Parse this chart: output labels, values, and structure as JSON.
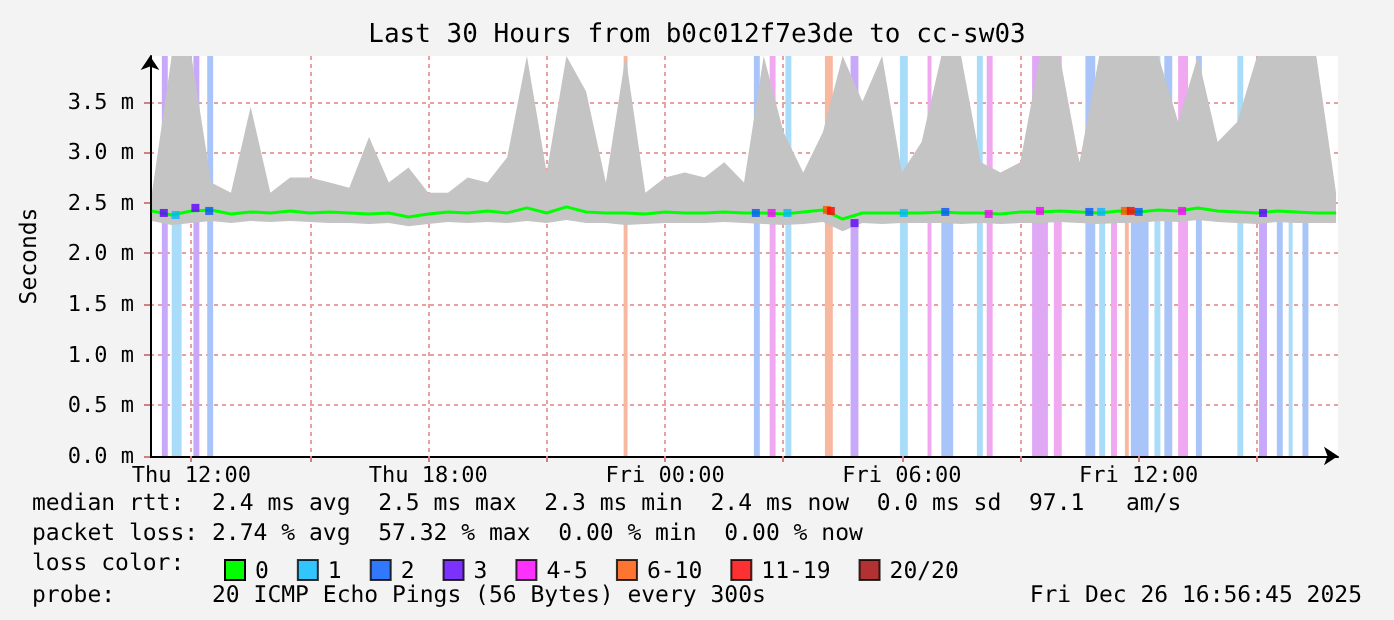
{
  "chart_data": {
    "type": "line",
    "title": "Last 30 Hours from b0c012f7e3de to cc-sw03",
    "ylabel": "Seconds",
    "legend_title": "loss color:",
    "annotations": [
      "median rtt:  2.4 ms avg  2.5 ms max  2.3 ms min  2.4 ms now  0.0 ms sd  97.1   am/s",
      "packet loss: 2.74 % avg  57.32 % max  0.00 % min  0.00 % now",
      "probe:       20 ICMP Echo Pings (56 Bytes) every 300s",
      "Fri Dec 26 16:56:45 2025"
    ],
    "xlim": [
      "2025-12-25T10:57",
      "2025-12-26T17:03"
    ],
    "xticks": [
      {
        "value": "2025-12-25T12:00",
        "label": "Thu 12:00"
      },
      {
        "value": "2025-12-25T15:00",
        "label": null
      },
      {
        "value": "2025-12-25T18:00",
        "label": "Thu 18:00"
      },
      {
        "value": "2025-12-25T21:00",
        "label": null
      },
      {
        "value": "2025-12-26T00:00",
        "label": "Fri 00:00"
      },
      {
        "value": "2025-12-26T03:00",
        "label": null
      },
      {
        "value": "2025-12-26T06:00",
        "label": "Fri 06:00"
      },
      {
        "value": "2025-12-26T09:00",
        "label": null
      },
      {
        "value": "2025-12-26T12:00",
        "label": "Fri 12:00"
      },
      {
        "value": "2025-12-26T15:00",
        "label": null
      }
    ],
    "ylim": [
      0,
      3.95
    ],
    "yticks": [
      {
        "value": 0,
        "label": "0.0 m"
      },
      {
        "value": 0.5,
        "label": "0.5 m"
      },
      {
        "value": 1,
        "label": "1.0 m"
      },
      {
        "value": 1.5,
        "label": "1.5 m"
      },
      {
        "value": 2,
        "label": "2.0 m"
      },
      {
        "value": 2.5,
        "label": "2.5 m"
      },
      {
        "value": 3,
        "label": "3.0 m"
      },
      {
        "value": 3.5,
        "label": "3.5 m"
      }
    ],
    "grid": true,
    "legend": "bottom left",
    "line_style": "solid",
    "series": [
      {
        "name": "0",
        "color": "#00ff00",
        "marker": "none",
        "x": [
          "2025-12-25T11:00",
          "2025-12-25T11:30",
          "2025-12-25T12:00",
          "2025-12-25T12:30",
          "2025-12-25T13:00",
          "2025-12-25T13:30",
          "2025-12-25T14:00",
          "2025-12-25T14:30",
          "2025-12-25T15:00",
          "2025-12-25T15:30",
          "2025-12-25T16:00",
          "2025-12-25T16:30",
          "2025-12-25T17:00",
          "2025-12-25T17:30",
          "2025-12-25T18:00",
          "2025-12-25T18:30",
          "2025-12-25T19:00",
          "2025-12-25T19:30",
          "2025-12-25T20:00",
          "2025-12-25T20:30",
          "2025-12-25T21:00",
          "2025-12-25T21:30",
          "2025-12-25T22:00",
          "2025-12-25T22:30",
          "2025-12-25T23:00",
          "2025-12-25T23:30",
          "2025-12-26T00:00",
          "2025-12-26T00:30",
          "2025-12-26T01:00",
          "2025-12-26T01:30",
          "2025-12-26T02:00",
          "2025-12-26T02:30",
          "2025-12-26T03:00",
          "2025-12-26T03:30",
          "2025-12-26T04:00",
          "2025-12-26T04:30",
          "2025-12-26T05:00",
          "2025-12-26T05:30",
          "2025-12-26T06:00",
          "2025-12-26T06:30",
          "2025-12-26T07:00",
          "2025-12-26T07:30",
          "2025-12-26T08:00",
          "2025-12-26T08:30",
          "2025-12-26T09:00",
          "2025-12-26T09:30",
          "2025-12-26T10:00",
          "2025-12-26T10:30",
          "2025-12-26T11:00",
          "2025-12-26T11:30",
          "2025-12-26T12:00",
          "2025-12-26T12:30",
          "2025-12-26T13:00",
          "2025-12-26T13:30",
          "2025-12-26T14:00",
          "2025-12-26T14:30",
          "2025-12-26T15:00",
          "2025-12-26T15:30",
          "2025-12-26T16:00",
          "2025-12-26T16:30",
          "2025-12-26T17:00"
        ],
        "values": [
          2.42,
          2.38,
          2.42,
          2.43,
          2.39,
          2.41,
          2.4,
          2.42,
          2.4,
          2.41,
          2.4,
          2.39,
          2.4,
          2.36,
          2.39,
          2.41,
          2.4,
          2.42,
          2.4,
          2.45,
          2.4,
          2.46,
          2.41,
          2.4,
          2.4,
          2.39,
          2.41,
          2.4,
          2.4,
          2.41,
          2.4,
          2.4,
          2.39,
          2.41,
          2.43,
          2.34,
          2.4,
          2.4,
          2.4,
          2.4,
          2.41,
          2.4,
          2.4,
          2.39,
          2.41,
          2.41,
          2.42,
          2.41,
          2.4,
          2.42,
          2.41,
          2.43,
          2.42,
          2.45,
          2.42,
          2.41,
          2.4,
          2.42,
          2.41,
          2.4,
          2.4
        ],
        "lower": [
          2.32,
          2.28,
          2.3,
          2.32,
          2.3,
          2.32,
          2.31,
          2.32,
          2.31,
          2.3,
          2.3,
          2.29,
          2.3,
          2.27,
          2.29,
          2.31,
          2.3,
          2.31,
          2.3,
          2.32,
          2.3,
          2.33,
          2.3,
          2.3,
          2.28,
          2.29,
          2.3,
          2.3,
          2.3,
          2.31,
          2.3,
          2.29,
          2.28,
          2.29,
          2.31,
          2.22,
          2.3,
          2.29,
          2.3,
          2.3,
          2.3,
          2.29,
          2.3,
          2.29,
          2.3,
          2.3,
          2.31,
          2.3,
          2.29,
          2.3,
          2.3,
          2.32,
          2.31,
          2.33,
          2.31,
          2.3,
          2.29,
          2.31,
          2.3,
          2.3,
          2.3
        ],
        "upper": [
          2.6,
          3.95,
          3.95,
          2.7,
          2.6,
          3.45,
          2.6,
          2.75,
          2.75,
          2.7,
          2.65,
          3.15,
          2.7,
          2.85,
          2.6,
          2.6,
          2.75,
          2.7,
          2.95,
          3.95,
          2.8,
          3.95,
          3.6,
          2.7,
          3.95,
          2.6,
          2.75,
          2.8,
          2.75,
          2.9,
          2.7,
          3.95,
          3.2,
          2.8,
          3.2,
          3.95,
          3.5,
          3.95,
          2.8,
          3.1,
          3.95,
          3.95,
          2.9,
          2.8,
          2.9,
          3.95,
          3.95,
          2.9,
          3.95,
          3.95,
          3.95,
          3.95,
          3.3,
          3.95,
          3.1,
          3.3,
          3.95,
          3.95,
          3.95,
          3.95,
          2.6
        ]
      },
      {
        "name": "1",
        "color": "#00b8ff",
        "type": "scatter",
        "marker": "square",
        "x": [
          "2025-12-25T11:36",
          "2025-12-26T03:06",
          "2025-12-26T06:03",
          "2025-12-26T11:03"
        ],
        "values": [
          2.38,
          2.4,
          2.4,
          2.41
        ]
      },
      {
        "name": "2",
        "color": "#0059ff",
        "type": "scatter",
        "marker": "square",
        "x": [
          "2025-12-25T12:27",
          "2025-12-26T02:18",
          "2025-12-26T07:06",
          "2025-12-26T10:45",
          "2025-12-26T12:00"
        ],
        "values": [
          2.42,
          2.4,
          2.41,
          2.41,
          2.41
        ]
      },
      {
        "name": "3",
        "color": "#5e00ff",
        "type": "scatter",
        "marker": "square",
        "x": [
          "2025-12-25T11:18",
          "2025-12-25T12:06",
          "2025-12-26T04:48",
          "2025-12-26T15:09"
        ],
        "values": [
          2.4,
          2.45,
          2.3,
          2.4
        ]
      },
      {
        "name": "4-5",
        "color": "#ff00ff",
        "type": "scatter",
        "marker": "square",
        "x": [
          "2025-12-26T02:42",
          "2025-12-26T08:12",
          "2025-12-26T09:30",
          "2025-12-26T13:06"
        ],
        "values": [
          2.4,
          2.39,
          2.42,
          2.42
        ]
      },
      {
        "name": "6-10",
        "color": "#ff5500",
        "type": "scatter",
        "marker": "square",
        "x": [
          "2025-12-26T04:06",
          "2025-12-26T11:39"
        ],
        "values": [
          2.43,
          2.42
        ]
      },
      {
        "name": "11-19",
        "color": "#ff0000",
        "type": "scatter",
        "marker": "square",
        "x": [
          "2025-12-26T04:12",
          "2025-12-26T11:48"
        ],
        "values": [
          2.42,
          2.42
        ]
      },
      {
        "name": "20/20",
        "color": "#a10000",
        "type": "scatter",
        "marker": "square"
      }
    ],
    "bands": [
      {
        "axis": "x",
        "from": "2025-12-25T11:15",
        "to": "2025-12-25T11:24",
        "color": "#c8a8f8"
      },
      {
        "axis": "x",
        "from": "2025-12-25T11:30",
        "to": "2025-12-25T11:45",
        "color": "#a8dcf8"
      },
      {
        "axis": "x",
        "from": "2025-12-25T12:03",
        "to": "2025-12-25T12:12",
        "color": "#c8a8f8"
      },
      {
        "axis": "x",
        "from": "2025-12-25T12:24",
        "to": "2025-12-25T12:33",
        "color": "#a8c4f8"
      },
      {
        "axis": "x",
        "from": "2025-12-25T22:57",
        "to": "2025-12-25T23:03",
        "color": "#f8b8a0"
      },
      {
        "axis": "x",
        "from": "2025-12-26T02:15",
        "to": "2025-12-26T02:24",
        "color": "#a8c4f8"
      },
      {
        "axis": "x",
        "from": "2025-12-26T02:39",
        "to": "2025-12-26T02:48",
        "color": "#f0a8f0"
      },
      {
        "axis": "x",
        "from": "2025-12-26T03:03",
        "to": "2025-12-26T03:12",
        "color": "#a8dcf8"
      },
      {
        "axis": "x",
        "from": "2025-12-26T04:03",
        "to": "2025-12-26T04:15",
        "color": "#f8b8a0"
      },
      {
        "axis": "x",
        "from": "2025-12-26T04:42",
        "to": "2025-12-26T04:54",
        "color": "#c8a8f8"
      },
      {
        "axis": "x",
        "from": "2025-12-26T05:57",
        "to": "2025-12-26T06:09",
        "color": "#a8dcf8"
      },
      {
        "axis": "x",
        "from": "2025-12-26T06:39",
        "to": "2025-12-26T06:45",
        "color": "#f0a8f0"
      },
      {
        "axis": "x",
        "from": "2025-12-26T07:00",
        "to": "2025-12-26T07:18",
        "color": "#a8c4f8"
      },
      {
        "axis": "x",
        "from": "2025-12-26T07:54",
        "to": "2025-12-26T08:03",
        "color": "#a8dcf8"
      },
      {
        "axis": "x",
        "from": "2025-12-26T08:09",
        "to": "2025-12-26T08:18",
        "color": "#f0a8f0"
      },
      {
        "axis": "x",
        "from": "2025-12-26T09:18",
        "to": "2025-12-26T09:42",
        "color": "#e0a8f4"
      },
      {
        "axis": "x",
        "from": "2025-12-26T09:51",
        "to": "2025-12-26T10:03",
        "color": "#f0a8f0"
      },
      {
        "axis": "x",
        "from": "2025-12-26T10:39",
        "to": "2025-12-26T10:54",
        "color": "#a8c4f8"
      },
      {
        "axis": "x",
        "from": "2025-12-26T11:00",
        "to": "2025-12-26T11:09",
        "color": "#a8dcf8"
      },
      {
        "axis": "x",
        "from": "2025-12-26T11:18",
        "to": "2025-12-26T11:27",
        "color": "#f0a8f0"
      },
      {
        "axis": "x",
        "from": "2025-12-26T11:39",
        "to": "2025-12-26T11:45",
        "color": "#f8b8a0"
      },
      {
        "axis": "x",
        "from": "2025-12-26T11:48",
        "to": "2025-12-26T12:15",
        "color": "#a8c4f8"
      },
      {
        "axis": "x",
        "from": "2025-12-26T12:24",
        "to": "2025-12-26T12:33",
        "color": "#a8dcf8"
      },
      {
        "axis": "x",
        "from": "2025-12-26T12:39",
        "to": "2025-12-26T12:51",
        "color": "#a8c4f8"
      },
      {
        "axis": "x",
        "from": "2025-12-26T13:00",
        "to": "2025-12-26T13:15",
        "color": "#f0a8f0"
      },
      {
        "axis": "x",
        "from": "2025-12-26T13:27",
        "to": "2025-12-26T13:36",
        "color": "#a8c4f8"
      },
      {
        "axis": "x",
        "from": "2025-12-26T14:30",
        "to": "2025-12-26T14:39",
        "color": "#a8dcf8"
      },
      {
        "axis": "x",
        "from": "2025-12-26T15:03",
        "to": "2025-12-26T15:15",
        "color": "#c8a8f8"
      },
      {
        "axis": "x",
        "from": "2025-12-26T15:30",
        "to": "2025-12-26T15:39",
        "color": "#a8c4f8"
      },
      {
        "axis": "x",
        "from": "2025-12-26T15:48",
        "to": "2025-12-26T15:54",
        "color": "#a8dcf8"
      },
      {
        "axis": "x",
        "from": "2025-12-26T16:09",
        "to": "2025-12-26T16:18",
        "color": "#a8c4f8"
      }
    ]
  }
}
